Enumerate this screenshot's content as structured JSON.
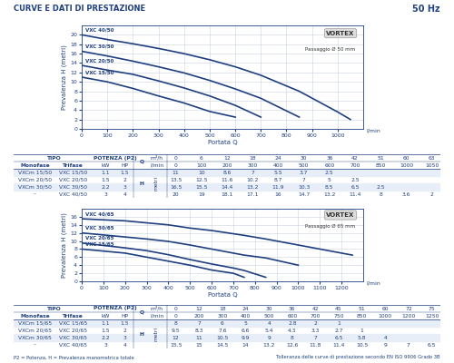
{
  "header": {
    "title": "CURVE E DATI DI PRESTAZIONE",
    "frequency": "50 Hz"
  },
  "footer": {
    "left": "P2 = Potenza, H = Prevalenza manometrica totale",
    "right": "Tolleranza delle curve di prestazione secondo EN ISO 9906 Grado 3B"
  },
  "chart_data": [
    {
      "type": "line",
      "x_label": "Portata Q",
      "x_unit": "l/min",
      "y_label": "Prevalenza H (metri)",
      "color": "#1f3f7f",
      "grid": true,
      "xlim": [
        0,
        1100
      ],
      "xticks": [
        0,
        100,
        200,
        300,
        400,
        500,
        600,
        700,
        800,
        900,
        1000
      ],
      "ylim": [
        0,
        22
      ],
      "yticks": [
        0,
        2,
        4,
        6,
        8,
        10,
        12,
        14,
        16,
        18,
        20
      ],
      "badge": {
        "title": "VORTEX",
        "text": "Passaggio Ø 50 mm"
      },
      "table_headers": {
        "tipo": "TIPO",
        "monofase": "Monofase",
        "trifase": "Trifase",
        "potenza": "POTENZA (P2)",
        "kw": "kW",
        "hp": "HP",
        "q": "Q",
        "m3h": "m³/h",
        "lmin": "l/min",
        "h": "H",
        "metri": "metri"
      },
      "q_m3h": [
        0,
        6,
        12,
        18,
        24,
        30,
        36,
        42,
        51,
        60,
        63
      ],
      "x": [
        0,
        100,
        200,
        300,
        400,
        500,
        600,
        700,
        850,
        1000,
        1050
      ],
      "series": [
        {
          "name": "VXC 15/50",
          "monofase": "VXCm 15/50",
          "kw": 1.1,
          "hp": 1.5,
          "values": [
            11,
            10,
            8.6,
            7,
            5.5,
            3.7,
            2.5,
            null,
            null,
            null,
            null
          ]
        },
        {
          "name": "VXC 20/50",
          "monofase": "VXCm 20/50",
          "kw": 1.5,
          "hp": 2,
          "values": [
            13.5,
            12.5,
            11.6,
            10.2,
            8.7,
            7,
            5,
            2.5,
            null,
            null,
            null
          ]
        },
        {
          "name": "VXC 30/50",
          "monofase": "VXCm 30/50",
          "kw": 2.2,
          "hp": 3,
          "values": [
            16.5,
            15.5,
            14.4,
            13.2,
            11.9,
            10.3,
            8.5,
            6.5,
            2.5,
            null,
            null
          ]
        },
        {
          "name": "VXC 40/50",
          "monofase": "–",
          "kw": 3,
          "hp": 4,
          "values": [
            20,
            19,
            18.1,
            17.1,
            16,
            14.7,
            13.2,
            11.4,
            8,
            3.6,
            2
          ]
        }
      ]
    },
    {
      "type": "line",
      "x_label": "Portata Q",
      "x_unit": "l/min",
      "y_label": "Prevalenza H (metri)",
      "color": "#1f3f7f",
      "grid": true,
      "xlim": [
        0,
        1300
      ],
      "xticks": [
        0,
        100,
        200,
        300,
        400,
        500,
        600,
        700,
        800,
        900,
        1000,
        1100,
        1200
      ],
      "ylim": [
        0,
        18
      ],
      "yticks": [
        0,
        2,
        4,
        6,
        8,
        10,
        12,
        14,
        16
      ],
      "badge": {
        "title": "VORTEX",
        "text": "Passaggio Ø 65 mm"
      },
      "table_headers": {
        "tipo": "TIPO",
        "monofase": "Monofase",
        "trifase": "Trifase",
        "potenza": "POTENZA (P2)",
        "kw": "kW",
        "hp": "HP",
        "q": "Q",
        "m3h": "m³/h",
        "lmin": "l/min",
        "h": "H",
        "metri": "metri"
      },
      "q_m3h": [
        0,
        12,
        18,
        24,
        30,
        36,
        42,
        45,
        51,
        60,
        72,
        75
      ],
      "x": [
        0,
        200,
        300,
        400,
        500,
        600,
        700,
        750,
        850,
        1000,
        1200,
        1250
      ],
      "series": [
        {
          "name": "VXC 15/65",
          "monofase": "VXCm 15/65",
          "kw": 1.1,
          "hp": 1.5,
          "values": [
            8,
            7,
            6,
            5,
            4,
            2.8,
            2,
            1,
            null,
            null,
            null,
            null
          ]
        },
        {
          "name": "VXC 20/65",
          "monofase": "VXCm 20/65",
          "kw": 1.5,
          "hp": 2,
          "values": [
            9.5,
            8.3,
            7.6,
            6.6,
            5.4,
            4.3,
            3.3,
            2.7,
            1,
            null,
            null,
            null
          ]
        },
        {
          "name": "VXC 30/65",
          "monofase": "VXCm 30/65",
          "kw": 2.2,
          "hp": 3,
          "values": [
            12,
            11,
            10.5,
            9.9,
            9,
            8,
            7,
            6.5,
            5.8,
            4,
            null,
            null
          ]
        },
        {
          "name": "VXC 40/65",
          "monofase": "–",
          "kw": 3,
          "hp": 4,
          "values": [
            15.5,
            15,
            14.5,
            14,
            13.2,
            12.6,
            11.8,
            11.4,
            10.5,
            9,
            7,
            6.5
          ]
        }
      ]
    }
  ]
}
